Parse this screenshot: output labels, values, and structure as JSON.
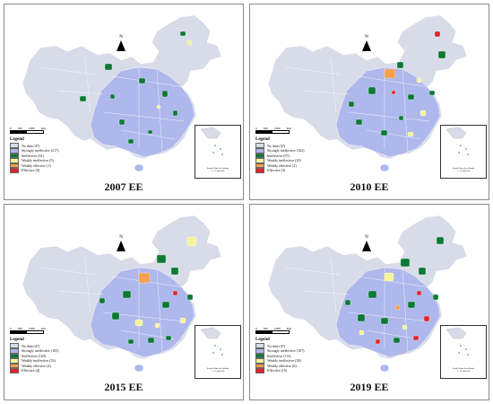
{
  "colors": {
    "no_data": "#d8dce8",
    "strongly_ineffective": "#aeb8ec",
    "ineffective": "#0c7a34",
    "weakly_ineffective": "#f6f29a",
    "weakly_effective": "#f4a04c",
    "effective": "#e0242a"
  },
  "map_common": {
    "north": "N",
    "scale_labels": [
      "0",
      "500",
      "1000"
    ],
    "scale_unit": "Km",
    "legend_title": "Legend",
    "inset_text": "South China Sea Islands",
    "inset_scale": "1 : 25,000,000"
  },
  "panels": [
    {
      "title": "2007 EE",
      "legend": [
        {
          "key": "no_data",
          "label": "No data (47)"
        },
        {
          "key": "strongly_ineffective",
          "label": "Strongly ineffective (217)"
        },
        {
          "key": "ineffective",
          "label": "Ineffective (61)"
        },
        {
          "key": "weakly_ineffective",
          "label": "Weakly ineffective (5)"
        },
        {
          "key": "weakly_effective",
          "label": "Weakly effective (1)"
        },
        {
          "key": "effective",
          "label": "Effective (0)"
        }
      ]
    },
    {
      "title": "2010 EE",
      "legend": [
        {
          "key": "no_data",
          "label": "No data (47)"
        },
        {
          "key": "strongly_ineffective",
          "label": "Strongly ineffective (162)"
        },
        {
          "key": "ineffective",
          "label": "Ineffective (97)"
        },
        {
          "key": "weakly_ineffective",
          "label": "Weakly ineffective (20)"
        },
        {
          "key": "weakly_effective",
          "label": "Weakly effective (2)"
        },
        {
          "key": "effective",
          "label": "Effective (3)"
        }
      ]
    },
    {
      "title": "2015 EE",
      "legend": [
        {
          "key": "no_data",
          "label": "No data (47)"
        },
        {
          "key": "strongly_ineffective",
          "label": "Strongly ineffective (105)"
        },
        {
          "key": "ineffective",
          "label": "Ineffective (120)"
        },
        {
          "key": "weakly_ineffective",
          "label": "Weakly ineffective (53)"
        },
        {
          "key": "weakly_effective",
          "label": "Weakly effective (4)"
        },
        {
          "key": "effective",
          "label": "Effective (4)"
        }
      ]
    },
    {
      "title": "2019 EE",
      "legend": [
        {
          "key": "no_data",
          "label": "No data (47)"
        },
        {
          "key": "strongly_ineffective",
          "label": "Strongly ineffective (107)"
        },
        {
          "key": "ineffective",
          "label": "Ineffective (114)"
        },
        {
          "key": "weakly_ineffective",
          "label": "Weakly ineffective (38)"
        },
        {
          "key": "weakly_effective",
          "label": "Weakly effective (6)"
        },
        {
          "key": "effective",
          "label": "Effective (15)"
        }
      ]
    }
  ]
}
